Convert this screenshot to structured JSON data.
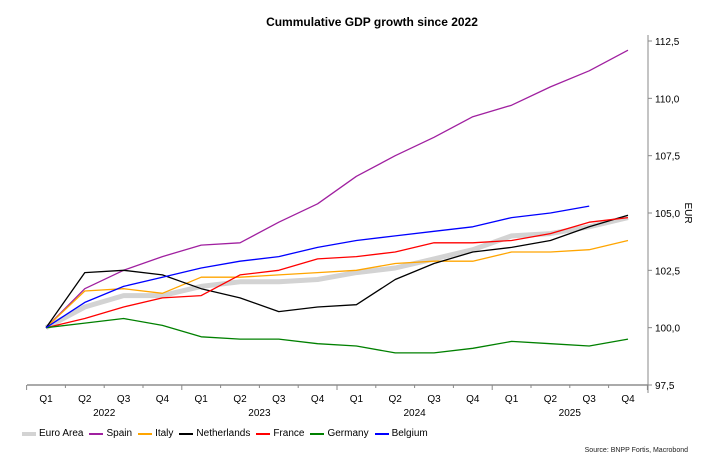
{
  "chart_data": {
    "type": "line",
    "title": "Cummulative GDP growth since 2022",
    "xlabel": "",
    "ylabel": "EUR",
    "y_axis_side": "right",
    "ylim": [
      97.5,
      112.5
    ],
    "yticks": [
      97.5,
      100.0,
      102.5,
      105.0,
      107.5,
      110.0,
      112.5
    ],
    "ytick_labels": [
      "97,5",
      "100,0",
      "102,5",
      "105,0",
      "107,5",
      "110,0",
      "112,5"
    ],
    "grid": false,
    "x": [
      "2022 Q1",
      "2022 Q2",
      "2022 Q3",
      "2022 Q4",
      "2023 Q1",
      "2023 Q2",
      "2023 Q3",
      "2023 Q4",
      "2024 Q1",
      "2024 Q2",
      "2024 Q3",
      "2024 Q4",
      "2025 Q1",
      "2025 Q2",
      "2025 Q3",
      "2025 Q4"
    ],
    "quarter_labels": [
      "Q1",
      "Q2",
      "Q3",
      "Q4",
      "Q1",
      "Q2",
      "Q3",
      "Q4",
      "Q1",
      "Q2",
      "Q3",
      "Q4",
      "Q1",
      "Q2",
      "Q3",
      "Q4"
    ],
    "year_labels": [
      "2022",
      "2023",
      "2024",
      "2025"
    ],
    "legend_position": "bottom-left",
    "series": [
      {
        "name": "Euro Area",
        "color": "#d3d3d3",
        "thick": true,
        "values": [
          100.0,
          100.9,
          101.4,
          101.4,
          101.8,
          102.0,
          102.0,
          102.1,
          102.4,
          102.6,
          103.0,
          103.4,
          104.0,
          104.1,
          104.4,
          104.8
        ]
      },
      {
        "name": "Spain",
        "color": "#a020a0",
        "values": [
          100.0,
          101.7,
          102.5,
          103.1,
          103.6,
          103.7,
          104.6,
          105.4,
          106.6,
          107.5,
          108.3,
          109.2,
          109.7,
          110.5,
          111.2,
          112.1
        ]
      },
      {
        "name": "Italy",
        "color": "#ffa500",
        "values": [
          100.0,
          101.6,
          101.7,
          101.5,
          102.2,
          102.2,
          102.3,
          102.4,
          102.5,
          102.8,
          102.9,
          102.9,
          103.3,
          103.3,
          103.4,
          103.8
        ]
      },
      {
        "name": "Netherlands",
        "color": "#000000",
        "values": [
          100.0,
          102.4,
          102.5,
          102.3,
          101.7,
          101.3,
          100.7,
          100.9,
          101.0,
          102.1,
          102.8,
          103.3,
          103.5,
          103.8,
          104.4,
          104.9
        ]
      },
      {
        "name": "France",
        "color": "#ff0000",
        "values": [
          100.0,
          100.4,
          100.9,
          101.3,
          101.4,
          102.3,
          102.5,
          103.0,
          103.1,
          103.3,
          103.7,
          103.7,
          103.8,
          104.1,
          104.6,
          104.8
        ]
      },
      {
        "name": "Germany",
        "color": "#008000",
        "values": [
          100.0,
          100.2,
          100.4,
          100.1,
          99.6,
          99.5,
          99.5,
          99.3,
          99.2,
          98.9,
          98.9,
          99.1,
          99.4,
          99.3,
          99.2,
          99.5
        ]
      },
      {
        "name": "Belgium",
        "color": "#0000ff",
        "values": [
          100.0,
          101.1,
          101.8,
          102.2,
          102.6,
          102.9,
          103.1,
          103.5,
          103.8,
          104.0,
          104.2,
          104.4,
          104.8,
          105.0,
          105.3,
          null
        ]
      }
    ],
    "source": "Source: BNPP Fortis, Macrobond"
  }
}
